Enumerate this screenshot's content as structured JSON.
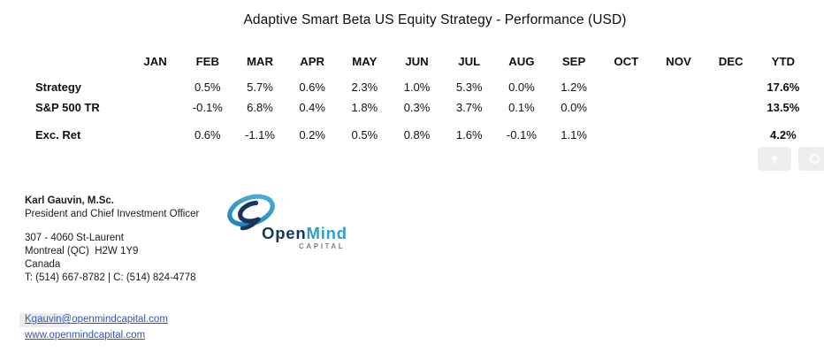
{
  "title": "Adaptive Smart Beta US Equity Strategy - Performance (USD)",
  "table": {
    "columns": [
      "JAN",
      "FEB",
      "MAR",
      "APR",
      "MAY",
      "JUN",
      "JUL",
      "AUG",
      "SEP",
      "OCT",
      "NOV",
      "DEC",
      "YTD"
    ],
    "rows": [
      {
        "label": "Strategy",
        "values": [
          "",
          "0.5%",
          "5.7%",
          "0.6%",
          "2.3%",
          "1.0%",
          "5.3%",
          "0.0%",
          "1.2%",
          "",
          "",
          "",
          "17.6%"
        ]
      },
      {
        "label": "S&P 500 TR",
        "values": [
          "",
          "-0.1%",
          "6.8%",
          "0.4%",
          "1.8%",
          "0.3%",
          "3.7%",
          "0.1%",
          "0.0%",
          "",
          "",
          "",
          "13.5%"
        ]
      },
      {
        "label": "Exc. Ret",
        "values": [
          "",
          "0.6%",
          "-1.1%",
          "0.2%",
          "0.5%",
          "0.8%",
          "1.6%",
          "-0.1%",
          "1.1%",
          "",
          "",
          "",
          "4.2%"
        ]
      }
    ]
  },
  "contact": {
    "name": "Karl Gauvin, M.Sc.",
    "role": "President and Chief Investment Officer",
    "address_line1": "307 - 4060 St-Laurent",
    "address_line2": "Montreal (QC)  H2W 1Y9",
    "address_line3": "Canada",
    "phone_line": "T: (514) 667-8782 | C: (514) 824-4778",
    "email": "Kgauvin@openmindcapital.com",
    "website": "www.openmindcapital.com"
  },
  "logo": {
    "word_open": "Open",
    "word_mind": "Mind",
    "word_capital": "CAPITAL",
    "navy": "#16365D",
    "teal": "#2D9FC9",
    "teal_light": "#4FB5DA",
    "teal_dark": "#1C7FAE",
    "capital_gray": "#808080"
  },
  "colors": {
    "link": "#3156B8",
    "text": "#111111"
  }
}
